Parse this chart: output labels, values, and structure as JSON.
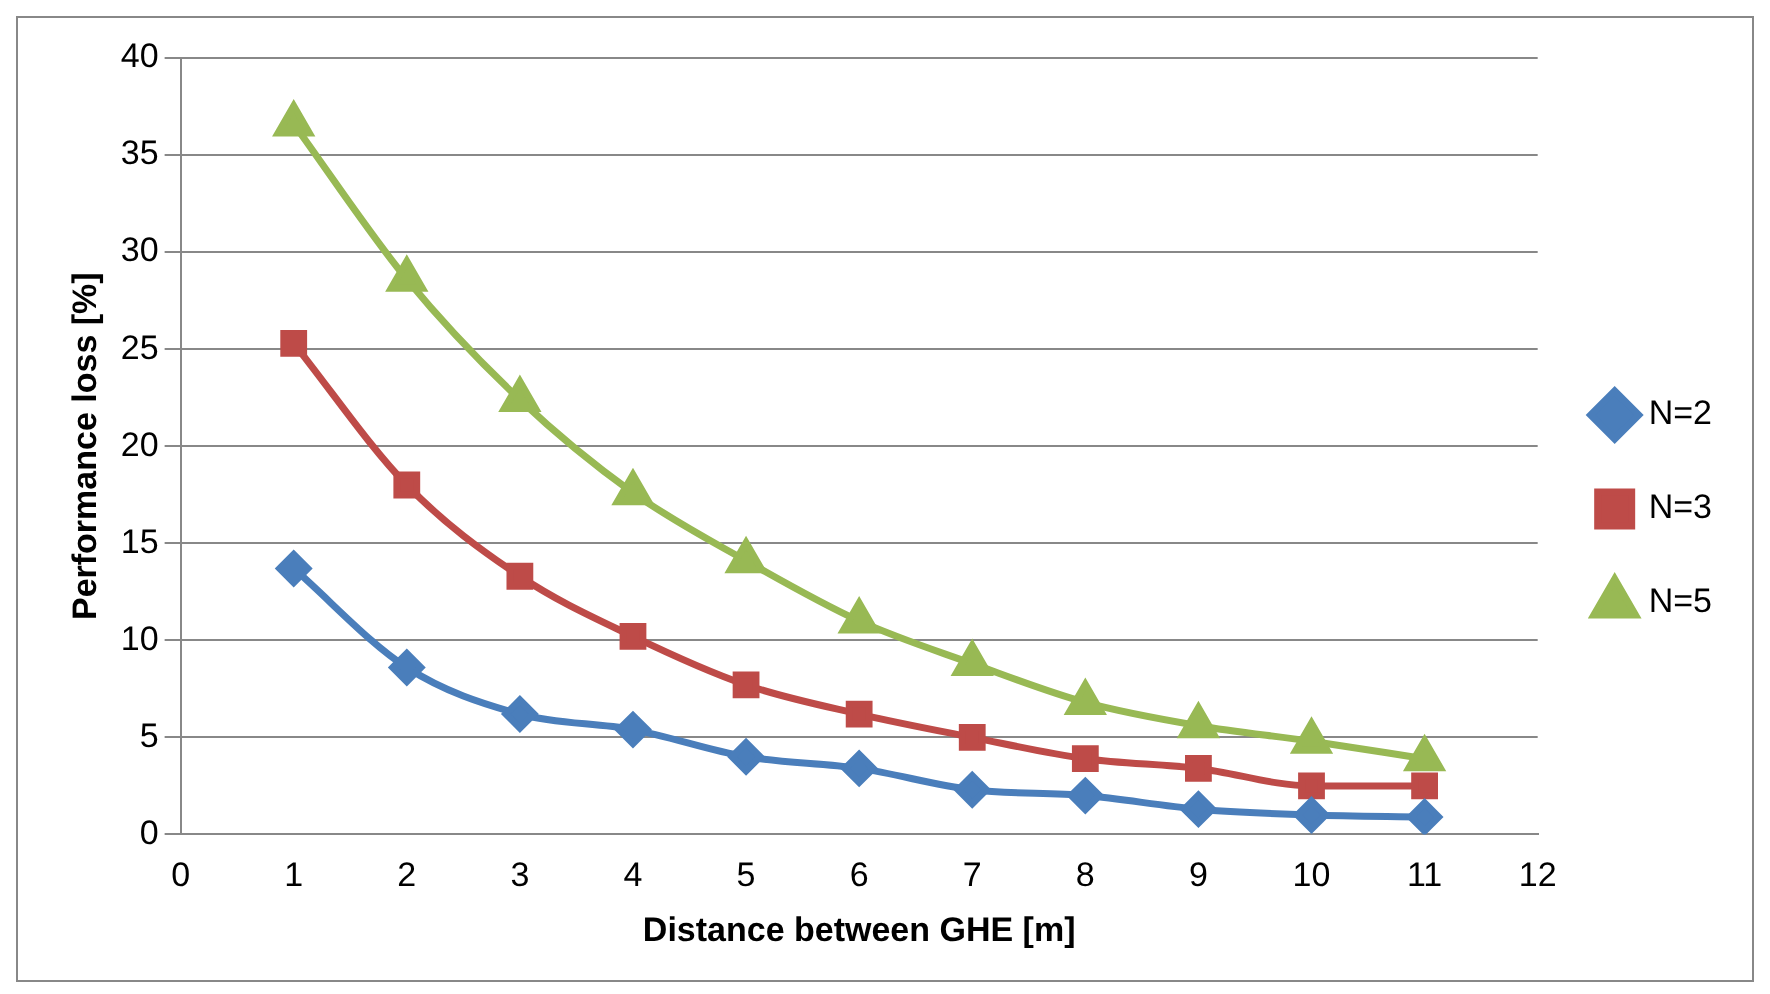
{
  "chart_data": {
    "type": "line",
    "xlabel": "Distance between GHE [m]",
    "ylabel": "Performance loss [%]",
    "x": [
      1,
      2,
      3,
      4,
      5,
      6,
      7,
      8,
      9,
      10,
      11
    ],
    "series": [
      {
        "name": "N=2",
        "color": "#4a7ebb",
        "marker": "diamond",
        "values": [
          13.7,
          8.6,
          6.2,
          5.4,
          4.0,
          3.4,
          2.3,
          2.0,
          1.3,
          1.0,
          0.9
        ]
      },
      {
        "name": "N=3",
        "color": "#be4b48",
        "marker": "square",
        "values": [
          25.3,
          18.0,
          13.3,
          10.2,
          7.7,
          6.2,
          5.0,
          3.9,
          3.4,
          2.5,
          2.5
        ]
      },
      {
        "name": "N=5",
        "color": "#98b954",
        "marker": "triangle",
        "values": [
          36.6,
          28.6,
          22.4,
          17.6,
          14.1,
          11.0,
          8.8,
          6.8,
          5.6,
          4.8,
          3.9
        ]
      }
    ],
    "xlim": [
      0,
      12
    ],
    "xticks": [
      0,
      1,
      2,
      3,
      4,
      5,
      6,
      7,
      8,
      9,
      10,
      11,
      12
    ],
    "ylim": [
      0,
      40
    ],
    "yticks": [
      0,
      5,
      10,
      15,
      20,
      25,
      30,
      35,
      40
    ],
    "grid": "y",
    "legend": "right",
    "line_style": "solid"
  }
}
